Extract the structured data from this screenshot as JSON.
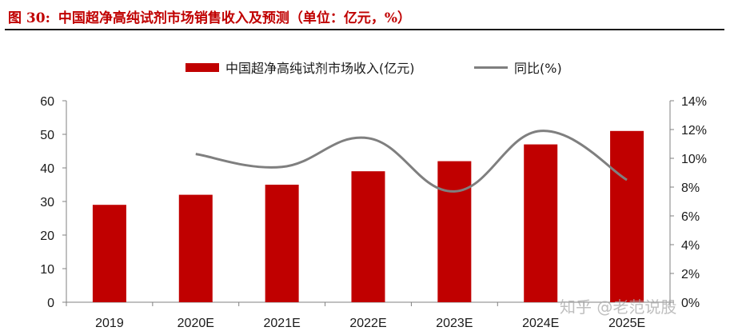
{
  "header": {
    "figure_label": "图 30:",
    "title": "中国超净高纯试剂市场销售收入及预测（单位：亿元，%）"
  },
  "watermark": "知乎 @老范说股",
  "colors": {
    "bar": "#c00000",
    "line": "#7f7f7f",
    "title": "#c00000"
  },
  "chart_data": {
    "type": "bar",
    "categories": [
      "2019",
      "2020E",
      "2021E",
      "2022E",
      "2023E",
      "2024E",
      "2025E"
    ],
    "series": [
      {
        "name": "中国超净高纯试剂市场收入(亿元)",
        "type": "bar",
        "axis": "left",
        "values": [
          29,
          32,
          35,
          39,
          42,
          47,
          51
        ]
      },
      {
        "name": "同比(%)",
        "type": "line",
        "axis": "right",
        "smooth": true,
        "values": [
          null,
          10.3,
          9.4,
          11.4,
          7.7,
          11.9,
          8.5
        ]
      }
    ],
    "ylim_left": [
      0,
      60
    ],
    "yticks_left": [
      "0",
      "10",
      "20",
      "30",
      "40",
      "50",
      "60"
    ],
    "ylim_right": [
      0,
      14
    ],
    "yticks_right": [
      "0%",
      "2%",
      "4%",
      "6%",
      "8%",
      "10%",
      "12%",
      "14%"
    ],
    "legend_position": "top-center",
    "grid": false
  }
}
